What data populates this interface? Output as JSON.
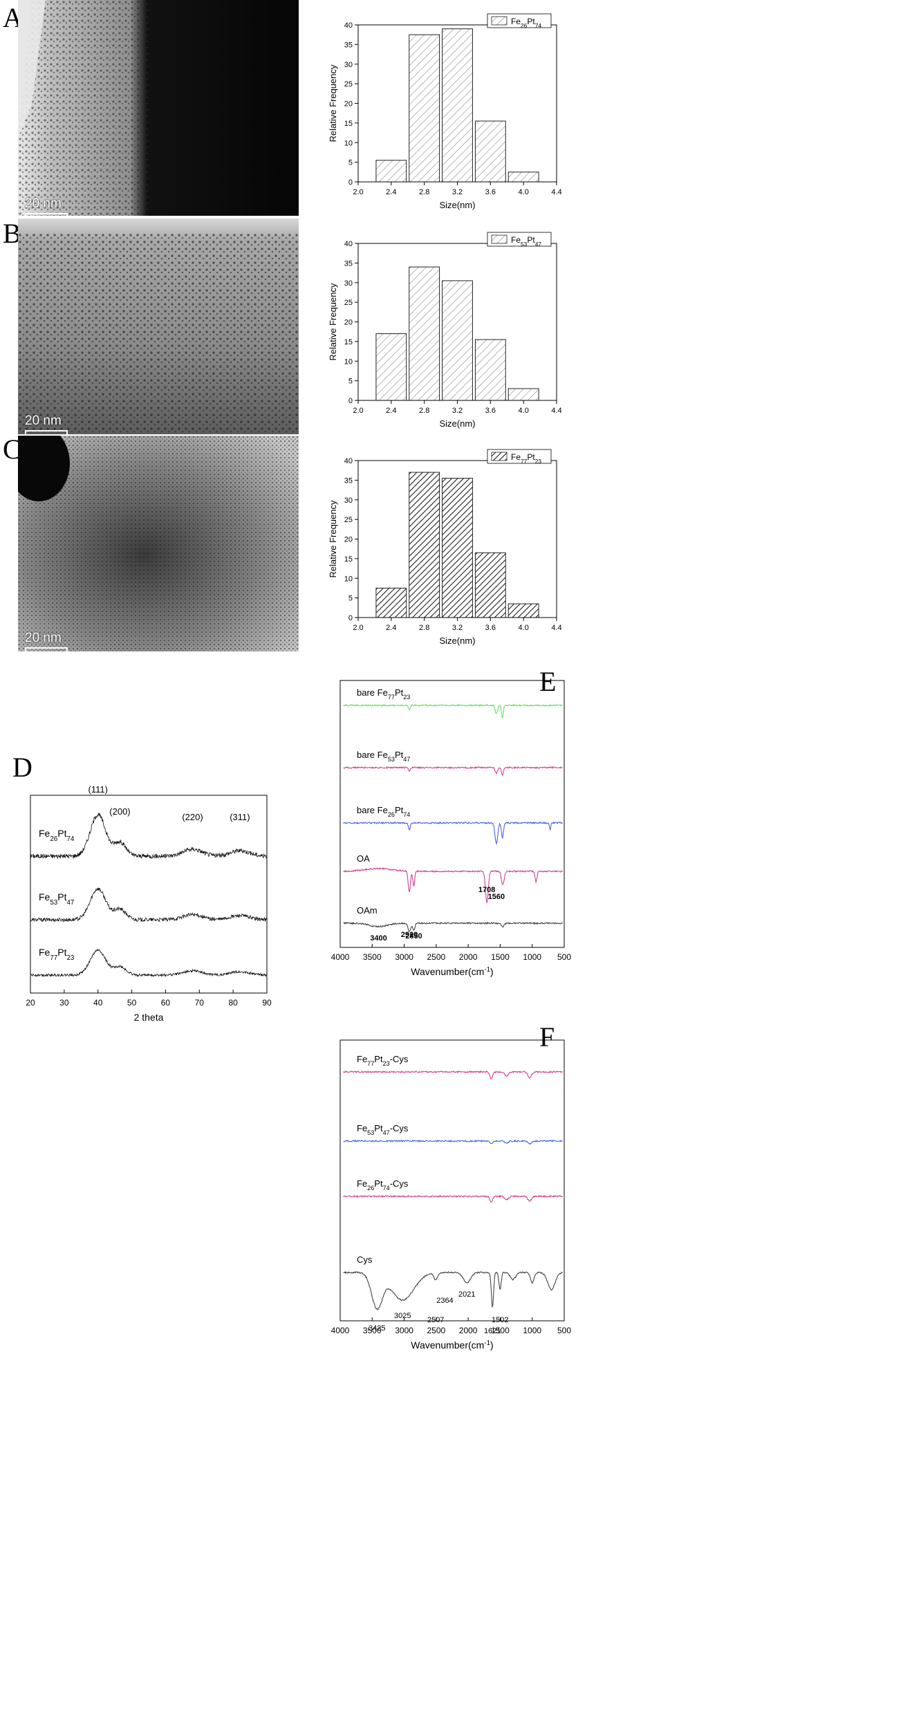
{
  "panels": {
    "A": "A",
    "B": "B",
    "C": "C",
    "D": "D",
    "E": "E",
    "F": "F"
  },
  "scale_bar_label": "20 nm",
  "chart_data": [
    {
      "id": "A",
      "type": "bar",
      "legend": "Fe26Pt74",
      "legend_base": "Fe",
      "legend_sub1": "26",
      "legend_mid": "Pt",
      "legend_sub2": "74",
      "xlabel": "Size(nm)",
      "ylabel": "Relative Frequency",
      "xlim": [
        2.0,
        4.4
      ],
      "ylim": [
        0,
        40
      ],
      "xticks": [
        "2.0",
        "2.4",
        "2.8",
        "3.2",
        "3.6",
        "4.0",
        "4.4"
      ],
      "yticks": [
        "0",
        "5",
        "10",
        "15",
        "20",
        "25",
        "30",
        "35",
        "40"
      ],
      "bin_width": 0.4,
      "centers": [
        2.4,
        2.8,
        3.2,
        3.6,
        4.0
      ],
      "values": [
        5.5,
        37.5,
        39,
        15.5,
        2.5
      ],
      "fill": "light"
    },
    {
      "id": "B",
      "type": "bar",
      "legend": "Fe53Pt47",
      "legend_base": "Fe",
      "legend_sub1": "53",
      "legend_mid": "Pt",
      "legend_sub2": "47",
      "xlabel": "Size(nm)",
      "ylabel": "Relative Frequency",
      "xlim": [
        2.0,
        4.4
      ],
      "ylim": [
        0,
        40
      ],
      "xticks": [
        "2.0",
        "2.4",
        "2.8",
        "3.2",
        "3.6",
        "4.0",
        "4.4"
      ],
      "yticks": [
        "0",
        "5",
        "10",
        "15",
        "20",
        "25",
        "30",
        "35",
        "40"
      ],
      "bin_width": 0.4,
      "centers": [
        2.4,
        2.8,
        3.2,
        3.6,
        4.0
      ],
      "values": [
        17,
        34,
        30.5,
        15.5,
        3
      ],
      "fill": "light"
    },
    {
      "id": "C",
      "type": "bar",
      "legend": "Fe77Pt23",
      "legend_base": "Fe",
      "legend_sub1": "77",
      "legend_mid": "Pt",
      "legend_sub2": "23",
      "xlabel": "Size(nm)",
      "ylabel": "Relative Frequency",
      "xlim": [
        2.0,
        4.4
      ],
      "ylim": [
        0,
        40
      ],
      "xticks": [
        "2.0",
        "2.4",
        "2.8",
        "3.2",
        "3.6",
        "4.0",
        "4.4"
      ],
      "yticks": [
        "0",
        "5",
        "10",
        "15",
        "20",
        "25",
        "30",
        "35",
        "40"
      ],
      "bin_width": 0.4,
      "centers": [
        2.4,
        2.8,
        3.2,
        3.6,
        4.0
      ],
      "values": [
        7.5,
        37,
        35.5,
        16.5,
        3.5
      ],
      "fill": "dark"
    },
    {
      "id": "D",
      "type": "line",
      "xlabel": "2 theta",
      "xlim": [
        20,
        90
      ],
      "xticks": [
        "20",
        "30",
        "40",
        "50",
        "60",
        "70",
        "80",
        "90"
      ],
      "peak_labels": [
        {
          "text": "(111)",
          "x": 40
        },
        {
          "text": "(200)",
          "x": 46.5
        },
        {
          "text": "(220)",
          "x": 68
        },
        {
          "text": "(311)",
          "x": 82
        }
      ],
      "series": [
        {
          "name_base": "Fe",
          "sub1": "26",
          "mid": "Pt",
          "sub2": "74",
          "peak_height": 1.0,
          "noise": 0.11
        },
        {
          "name_base": "Fe",
          "sub1": "53",
          "mid": "Pt",
          "sub2": "47",
          "peak_height": 0.75,
          "noise": 0.09
        },
        {
          "name_base": "Fe",
          "sub1": "77",
          "mid": "Pt",
          "sub2": "23",
          "peak_height": 0.6,
          "noise": 0.06
        }
      ]
    },
    {
      "id": "E",
      "type": "line",
      "xlabel": "Wavenumber(cm",
      "xlabel_sup": "-1",
      "xlabel_end": ")",
      "xlim": [
        4000,
        500
      ],
      "xticks": [
        "4000",
        "3500",
        "3000",
        "2500",
        "2000",
        "1500",
        "1000",
        "500"
      ],
      "series": [
        {
          "label": "bare Fe77Pt23",
          "label_base": "bare Fe",
          "sub1": "77",
          "mid": "Pt",
          "sub2": "23",
          "color": "#66e066"
        },
        {
          "label": "bare Fe53Pt47",
          "label_base": "bare Fe",
          "sub1": "53",
          "mid": "Pt",
          "sub2": "47",
          "color": "#d0428f"
        },
        {
          "label": "bare Fe26Pt74",
          "label_base": "bare Fe",
          "sub1": "26",
          "mid": "Pt",
          "sub2": "74",
          "color": "#4a63d9"
        },
        {
          "label": "OA",
          "label_base": "OA",
          "sub1": "",
          "mid": "",
          "sub2": "",
          "color": "#d0428f"
        },
        {
          "label": "OAm",
          "label_base": "OAm",
          "sub1": "",
          "mid": "",
          "sub2": "",
          "color": "#444444"
        }
      ],
      "annotations": [
        {
          "text": "1560",
          "x": 1560
        },
        {
          "text": "1708",
          "x": 1708
        },
        {
          "text": "3400",
          "x": 3400
        },
        {
          "text": "2920",
          "x": 2920
        },
        {
          "text": "2850",
          "x": 2850
        }
      ]
    },
    {
      "id": "F",
      "type": "line",
      "xlabel": "Wavenumber(cm",
      "xlabel_sup": "-1",
      "xlabel_end": ")",
      "xlim": [
        4000,
        500
      ],
      "xticks": [
        "4000",
        "3500",
        "3000",
        "2500",
        "2000",
        "1500",
        "1000",
        "500"
      ],
      "series": [
        {
          "label": "Fe77Pt23-Cys",
          "label_base": "Fe",
          "sub1": "77",
          "mid": "Pt",
          "sub2": "23",
          "suffix": "-Cys",
          "color": "#d0428f"
        },
        {
          "label": "Fe53Pt47-Cys",
          "label_base": "Fe",
          "sub1": "53",
          "mid": "Pt",
          "sub2": "47",
          "suffix": "-Cys",
          "color": "#4a63d9"
        },
        {
          "label": "Fe26Pt74-Cys",
          "label_base": "Fe",
          "sub1": "26",
          "mid": "Pt",
          "sub2": "74",
          "suffix": "-Cys",
          "color": "#d0428f"
        },
        {
          "label": "Cys",
          "label_base": "Cys",
          "sub1": "",
          "mid": "",
          "sub2": "",
          "suffix": "",
          "color": "#444444"
        }
      ],
      "annotations": [
        {
          "text": "3425",
          "x": 3425
        },
        {
          "text": "3025",
          "x": 3025
        },
        {
          "text": "2507",
          "x": 2507
        },
        {
          "text": "2364",
          "x": 2364
        },
        {
          "text": "2021",
          "x": 2021
        },
        {
          "text": "1621",
          "x": 1621
        },
        {
          "text": "1502",
          "x": 1502
        }
      ]
    }
  ]
}
